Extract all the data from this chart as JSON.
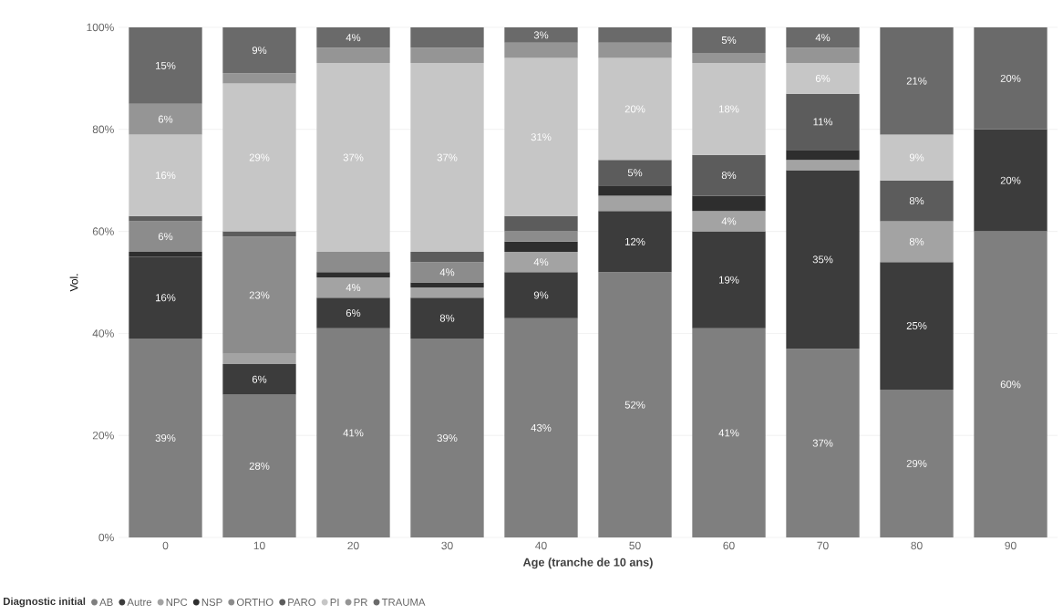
{
  "chart_data": {
    "type": "bar",
    "stacked": true,
    "xlabel": "Age (tranche de 10 ans)",
    "ylabel": "Vol.",
    "legend_title": "Diagnostic initial",
    "categories": [
      "0",
      "10",
      "20",
      "30",
      "40",
      "50",
      "60",
      "70",
      "80",
      "90"
    ],
    "ylim": [
      0,
      100
    ],
    "yticks": [
      {
        "value": 0,
        "label": "0%"
      },
      {
        "value": 20,
        "label": "20%"
      },
      {
        "value": 40,
        "label": "40%"
      },
      {
        "value": 60,
        "label": "60%"
      },
      {
        "value": 80,
        "label": "80%"
      },
      {
        "value": 100,
        "label": "100%"
      }
    ],
    "grid": "y",
    "legend": "bottom left",
    "series": [
      {
        "name": "AB",
        "color": "#7f7f7f",
        "values": [
          39,
          28,
          41,
          39,
          43,
          52,
          41,
          37,
          29,
          60
        ],
        "value_labels": [
          "39%",
          "28%",
          "41%",
          "39%",
          "43%",
          "52%",
          "41%",
          "37%",
          "29%",
          "60%"
        ]
      },
      {
        "name": "Autre",
        "color": "#3c3c3c",
        "values": [
          16,
          6,
          6,
          8,
          9,
          12,
          19,
          35,
          25,
          20
        ],
        "value_labels": [
          "16%",
          "6%",
          "6%",
          "8%",
          "9%",
          "12%",
          "19%",
          "35%",
          "25%",
          "20%"
        ]
      },
      {
        "name": "NPC",
        "color": "#a3a3a3",
        "values": [
          0,
          2,
          4,
          2,
          4,
          3,
          4,
          2,
          8,
          0
        ],
        "value_labels": [
          null,
          null,
          "4%",
          null,
          "4%",
          null,
          "4%",
          null,
          "8%",
          null
        ]
      },
      {
        "name": "NSP",
        "color": "#2e2e2e",
        "values": [
          1,
          0,
          1,
          1,
          2,
          2,
          3,
          2,
          0,
          0
        ],
        "value_labels": [
          null,
          null,
          null,
          null,
          null,
          null,
          null,
          null,
          null,
          null
        ]
      },
      {
        "name": "ORTHO",
        "color": "#8c8c8c",
        "values": [
          6,
          23,
          4,
          4,
          2,
          0,
          0,
          0,
          0,
          0
        ],
        "value_labels": [
          "6%",
          "23%",
          null,
          "4%",
          null,
          null,
          null,
          null,
          null,
          null
        ]
      },
      {
        "name": "PARO",
        "color": "#5c5c5c",
        "values": [
          1,
          1,
          0,
          2,
          3,
          5,
          8,
          11,
          8,
          0
        ],
        "value_labels": [
          null,
          null,
          null,
          null,
          null,
          "5%",
          "8%",
          "11%",
          "8%",
          null
        ]
      },
      {
        "name": "PI",
        "color": "#c6c6c6",
        "values": [
          16,
          29,
          37,
          37,
          31,
          20,
          18,
          6,
          9,
          0
        ],
        "value_labels": [
          "16%",
          "29%",
          "37%",
          "37%",
          "31%",
          "20%",
          "18%",
          "6%",
          "9%",
          null
        ]
      },
      {
        "name": "PR",
        "color": "#959595",
        "values": [
          6,
          2,
          3,
          3,
          3,
          3,
          2,
          3,
          0,
          0
        ],
        "value_labels": [
          "6%",
          null,
          null,
          null,
          null,
          null,
          null,
          null,
          null,
          null
        ]
      },
      {
        "name": "TRAUMA",
        "color": "#6a6a6a",
        "values": [
          15,
          9,
          4,
          4,
          3,
          3,
          5,
          4,
          21,
          20
        ],
        "value_labels": [
          "15%",
          "9%",
          "4%",
          null,
          "3%",
          null,
          "5%",
          "4%",
          "21%",
          "20%"
        ]
      }
    ]
  }
}
